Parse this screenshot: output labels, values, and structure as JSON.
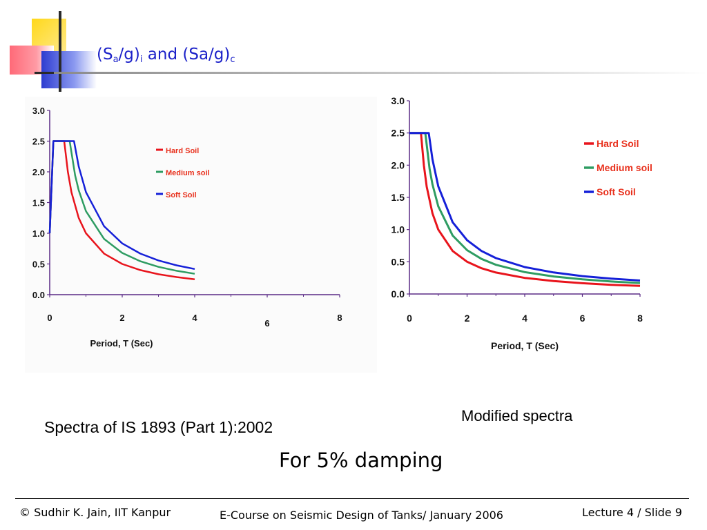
{
  "slide": {
    "title": {
      "base1": "(S",
      "sub1": "a",
      "base2": "/g)",
      "sub2": "i",
      "base3": " and (Sa/g)",
      "sub3": "c"
    },
    "left_caption": "Spectra of  IS 1893 (Part 1):2002",
    "right_caption": "Modified spectra",
    "damping_note": "For 5% damping",
    "footer": {
      "copyright_symbol": "©",
      "author": " Sudhir K. Jain, IIT Kanpur",
      "course": "E-Course on Seismic Design of Tanks/ January 2006",
      "slide_number": "Lecture 4 / Slide 9"
    },
    "colors": {
      "title": "#1c22c9",
      "hard": "#e8141c",
      "medium": "#2e9c62",
      "soft": "#1520d8",
      "axis": "#5a2a86"
    }
  },
  "chart_data": [
    {
      "type": "line",
      "xlabel": "Period, T (Sec)",
      "ylabel": "",
      "xlim": [
        0,
        8
      ],
      "ylim": [
        0,
        3
      ],
      "x_ticks": [
        "0",
        "2",
        "4",
        "6",
        "8"
      ],
      "y_ticks": [
        "0.0",
        "0.5",
        "1.0",
        "1.5",
        "2.0",
        "2.5",
        "3.0"
      ],
      "legend_position": "top-right",
      "series": [
        {
          "name": "Hard Soil",
          "color": "#e8141c",
          "x": [
            0,
            0.1,
            0.4,
            0.5,
            0.6,
            0.8,
            1.0,
            1.5,
            2.0,
            2.5,
            3.0,
            3.5,
            4.0
          ],
          "y": [
            1.0,
            2.5,
            2.5,
            2.0,
            1.667,
            1.25,
            1.0,
            0.667,
            0.5,
            0.4,
            0.333,
            0.286,
            0.25
          ]
        },
        {
          "name": "Medium soil",
          "color": "#2e9c62",
          "x": [
            0,
            0.1,
            0.55,
            0.7,
            0.8,
            1.0,
            1.5,
            2.0,
            2.5,
            3.0,
            3.5,
            4.0
          ],
          "y": [
            1.0,
            2.5,
            2.5,
            1.943,
            1.7,
            1.36,
            0.907,
            0.68,
            0.544,
            0.453,
            0.389,
            0.34
          ]
        },
        {
          "name": "Soft Soil",
          "color": "#1520d8",
          "x": [
            0,
            0.1,
            0.67,
            0.8,
            1.0,
            1.5,
            2.0,
            2.5,
            3.0,
            3.5,
            4.0
          ],
          "y": [
            1.0,
            2.5,
            2.5,
            2.088,
            1.67,
            1.113,
            0.835,
            0.668,
            0.557,
            0.477,
            0.418
          ]
        }
      ]
    },
    {
      "type": "line",
      "xlabel": "Period, T (Sec)",
      "ylabel": "",
      "xlim": [
        0,
        8
      ],
      "ylim": [
        0,
        3
      ],
      "x_ticks": [
        "0",
        "2",
        "4",
        "6",
        "8"
      ],
      "y_ticks": [
        "0.0",
        "0.5",
        "1.0",
        "1.5",
        "2.0",
        "2.5",
        "3.0"
      ],
      "legend_position": "top-right",
      "series": [
        {
          "name": "Hard Soil",
          "color": "#e8141c",
          "x": [
            0,
            0.4,
            0.5,
            0.6,
            0.8,
            1.0,
            1.5,
            2.0,
            2.5,
            3.0,
            4.0,
            5.0,
            6.0,
            7.0,
            8.0
          ],
          "y": [
            2.5,
            2.5,
            2.0,
            1.667,
            1.25,
            1.0,
            0.667,
            0.5,
            0.4,
            0.333,
            0.25,
            0.2,
            0.167,
            0.143,
            0.125
          ]
        },
        {
          "name": "Medium soil",
          "color": "#2e9c62",
          "x": [
            0,
            0.55,
            0.7,
            0.8,
            1.0,
            1.5,
            2.0,
            2.5,
            3.0,
            4.0,
            5.0,
            6.0,
            7.0,
            8.0
          ],
          "y": [
            2.5,
            2.5,
            1.943,
            1.7,
            1.36,
            0.907,
            0.68,
            0.544,
            0.453,
            0.34,
            0.272,
            0.227,
            0.194,
            0.17
          ]
        },
        {
          "name": "Soft Soil",
          "color": "#1520d8",
          "x": [
            0,
            0.67,
            0.8,
            1.0,
            1.5,
            2.0,
            2.5,
            3.0,
            4.0,
            5.0,
            6.0,
            7.0,
            8.0
          ],
          "y": [
            2.5,
            2.5,
            2.088,
            1.67,
            1.113,
            0.835,
            0.668,
            0.557,
            0.418,
            0.334,
            0.278,
            0.239,
            0.209
          ]
        }
      ]
    }
  ]
}
